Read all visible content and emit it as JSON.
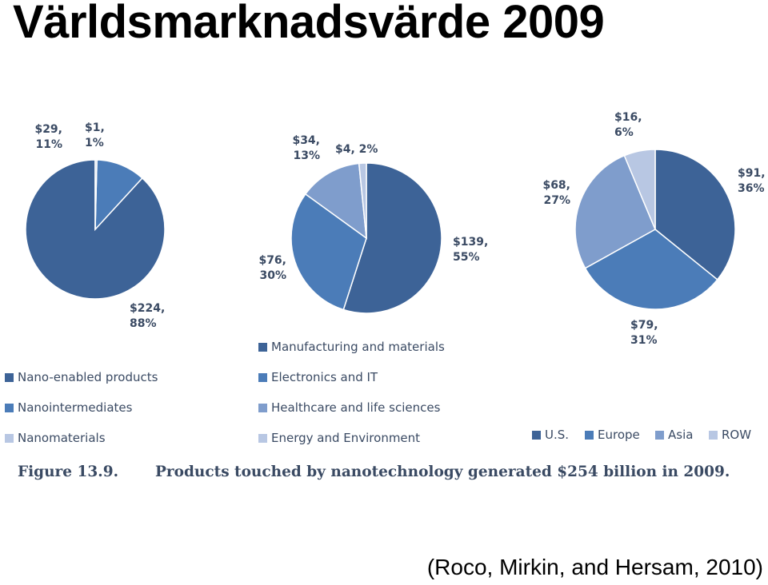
{
  "title": "Världsmarknadsvärde 2009",
  "citation": "(Roco, Mirkin, and Hersam, 2010)",
  "figure": {
    "number": "Figure 13.9.",
    "caption": "Products touched by nanotechnology generated $254 billion in 2009."
  },
  "colors": [
    "#3d6397",
    "#4b7cb8",
    "#7f9dcc",
    "#b8c7e3"
  ],
  "chart_data": [
    {
      "type": "pie",
      "slices": [
        {
          "name": "Nano-enabled products",
          "value": 224,
          "label": "$224,\n88%"
        },
        {
          "name": "Nanointermediates",
          "value": 29,
          "label": "$29,\n11%"
        },
        {
          "name": "Nanomaterials",
          "value": 1,
          "label": "$1,\n1%"
        }
      ],
      "legend": [
        "Nano-enabled products",
        "Nanointermediates",
        "Nanomaterials"
      ]
    },
    {
      "type": "pie",
      "slices": [
        {
          "name": "Manufacturing and materials",
          "value": 139,
          "label": "$139,\n55%"
        },
        {
          "name": "Electronics and IT",
          "value": 76,
          "label": "$76,\n30%"
        },
        {
          "name": "Healthcare and life sciences",
          "value": 34,
          "label": "$34,\n13%"
        },
        {
          "name": "Energy and Environment",
          "value": 4,
          "label": "$4, 2%"
        }
      ],
      "legend": [
        "Manufacturing and materials",
        "Electronics and IT",
        "Healthcare and life sciences",
        "Energy and Environment"
      ]
    },
    {
      "type": "pie",
      "slices": [
        {
          "name": "U.S.",
          "value": 91,
          "label": "$91,\n36%"
        },
        {
          "name": "Europe",
          "value": 79,
          "label": "$79,\n31%"
        },
        {
          "name": "Asia",
          "value": 68,
          "label": "$68,\n27%"
        },
        {
          "name": "ROW",
          "value": 16,
          "label": "$16,\n6%"
        }
      ],
      "legend": [
        "U.S.",
        "Europe",
        "Asia",
        "ROW"
      ]
    }
  ]
}
